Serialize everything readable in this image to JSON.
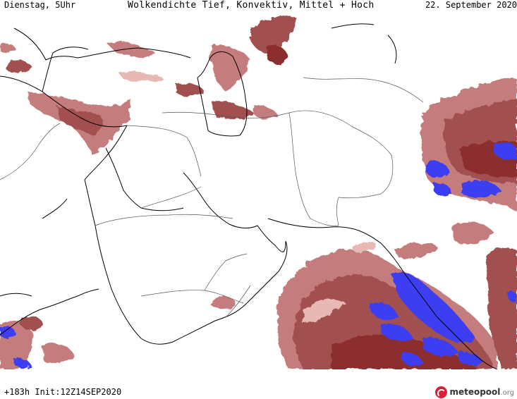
{
  "header": {
    "day_label": "Dienstag, 5Uhr",
    "title": "Wolkendichte  Tief, Konvektiv, Mittel + Hoch",
    "date_label": "22. September 2020"
  },
  "footer": {
    "run_label": "+183h Init:12Z14SEP2020",
    "logo_name": "meteopool",
    "logo_tld": ".org"
  },
  "legend_colors": {
    "light_cloud": "#e7b8b4",
    "medium_cloud": "#c47b7b",
    "dense_cloud": "#a1504f",
    "very_dense_cloud": "#8c2f2f",
    "convective": "#3e3ef2"
  },
  "map": {
    "region": "Middle East / Arabian Sea",
    "coastline_color": "#000000",
    "border_color": "#555555"
  }
}
